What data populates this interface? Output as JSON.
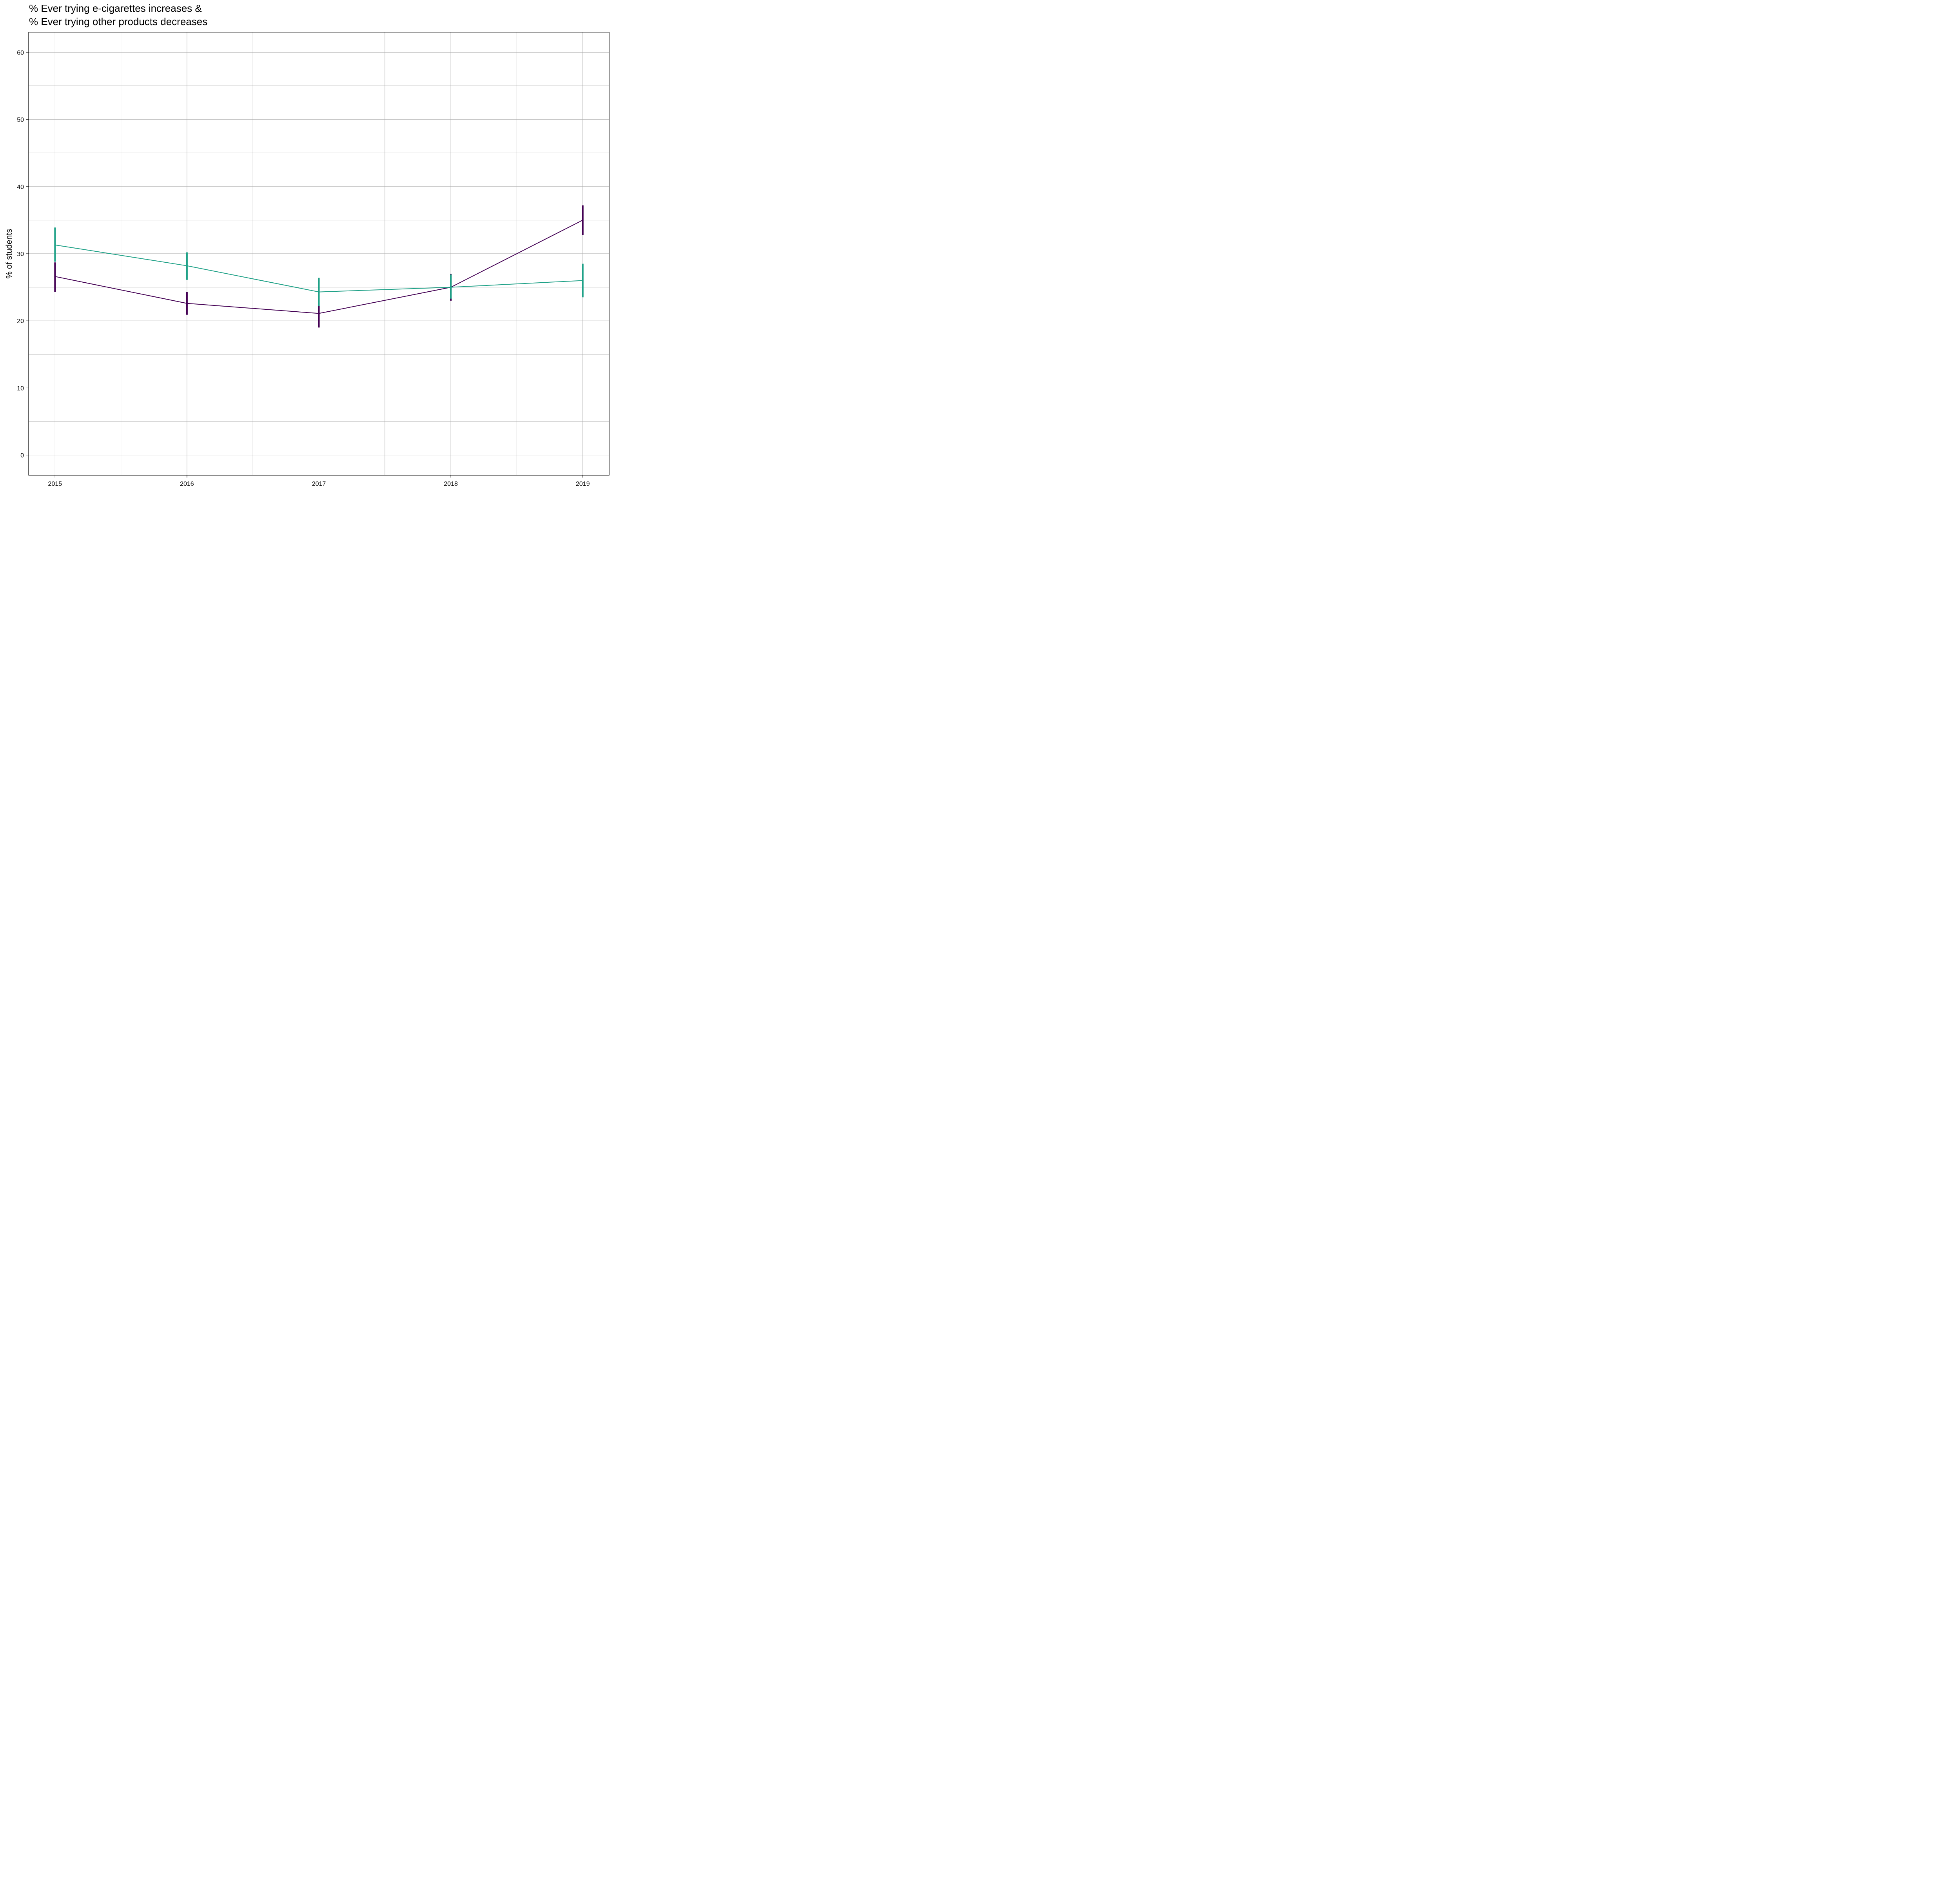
{
  "chart_data": {
    "type": "line",
    "title_lines": [
      "% Ever trying e-cigarettes increases &",
      "% Ever trying other products decreases"
    ],
    "xlabel": "",
    "ylabel": "% of students",
    "x": [
      2015,
      2016,
      2017,
      2018,
      2019
    ],
    "x_tick_labels": [
      "2015",
      "2016",
      "2017",
      "2018",
      "2019"
    ],
    "xlim": [
      2014.8,
      2019.2
    ],
    "ylim": [
      -3,
      63
    ],
    "y_ticks": [
      0,
      10,
      20,
      30,
      40,
      50,
      60
    ],
    "y_tick_labels": [
      "0",
      "10",
      "20",
      "30",
      "40",
      "50",
      "60"
    ],
    "grid": true,
    "legend": "none",
    "series": [
      {
        "color": "#440154",
        "values": [
          26.6,
          22.6,
          21.1,
          25.0,
          35.0
        ],
        "lower": [
          24.3,
          20.9,
          19.0,
          23.0,
          32.8
        ],
        "upper": [
          28.7,
          24.3,
          22.2,
          27.0,
          37.2
        ]
      },
      {
        "color": "#1fa187",
        "values": [
          31.3,
          28.2,
          24.3,
          25.0,
          26.0
        ],
        "lower": [
          28.8,
          26.1,
          22.2,
          23.3,
          23.5
        ],
        "upper": [
          33.9,
          30.2,
          26.4,
          26.9,
          28.5
        ]
      }
    ]
  }
}
